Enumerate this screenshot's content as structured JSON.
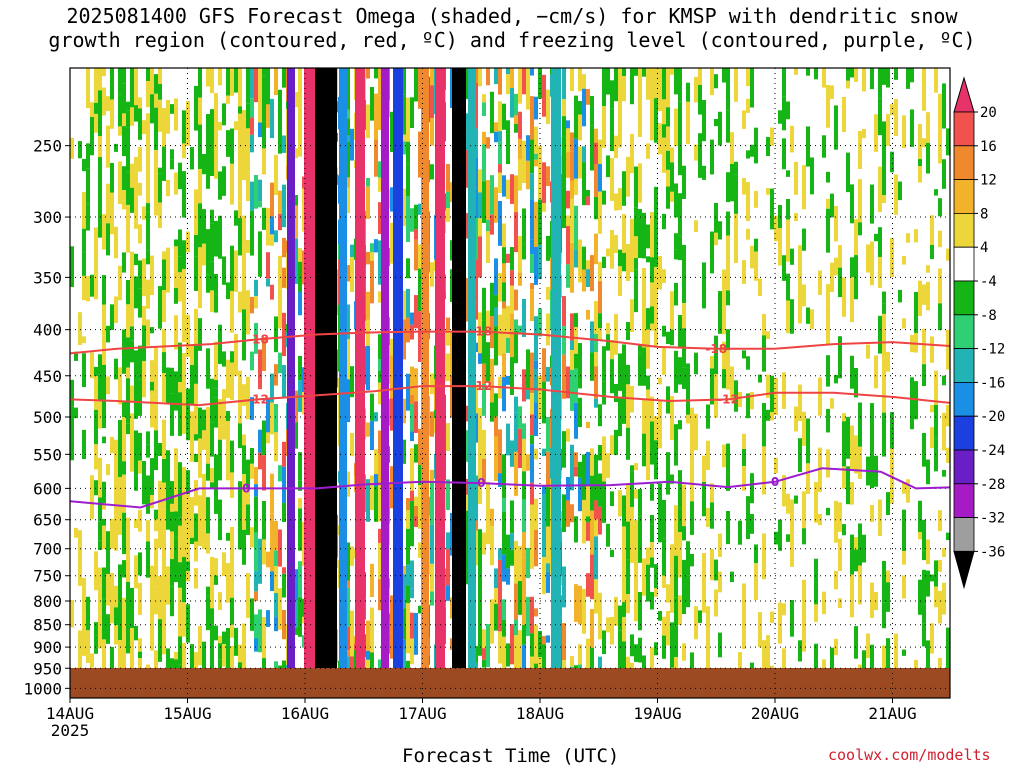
{
  "title_line1": "2025081400 GFS Forecast Omega (shaded, −cm/s) for KMSP with dendritic snow",
  "title_line2": "growth region (contoured, red, ºC) and freezing level (contoured, purple, ºC)",
  "credit": "coolwx.com/modelts",
  "chart_data": {
    "type": "heatmap",
    "title": "2025081400 GFS Forecast Omega (shaded, −cm/s) for KMSP with dendritic snow growth region (contoured, red, ºC) and freezing level (contoured, purple, ºC)",
    "xlabel": "Forecast Time (UTC)",
    "x_ticks": [
      "14AUG",
      "15AUG",
      "16AUG",
      "17AUG",
      "18AUG",
      "19AUG",
      "20AUG",
      "21AUG"
    ],
    "x_first_tick_year": "2025",
    "y_ticks": [
      250,
      300,
      350,
      400,
      450,
      500,
      550,
      600,
      650,
      700,
      750,
      800,
      850,
      900,
      950,
      1000
    ],
    "y_scale": "log-pressure, inverted",
    "grid": true,
    "colorbar": {
      "levels": [
        20,
        16,
        12,
        8,
        4,
        -4,
        -8,
        -12,
        -16,
        -20,
        -24,
        -28,
        -32,
        -36
      ],
      "colors": [
        "#e8336a",
        "#f2524e",
        "#f0892e",
        "#f2b22a",
        "#ecd63a",
        "#ffffff",
        "#15b515",
        "#2fcf73",
        "#22b4b4",
        "#1b8fe6",
        "#1c3fe0",
        "#6a1fc6",
        "#a51bc6",
        "#9e9e9e",
        "#000000"
      ]
    },
    "contours": [
      {
        "name": "dendritic",
        "color": "#ef4444",
        "label": "-18",
        "points": [
          [
            0,
            425
          ],
          [
            0.4,
            420
          ],
          [
            1.2,
            415
          ],
          [
            1.6,
            410
          ],
          [
            2.1,
            405
          ],
          [
            2.5,
            403
          ],
          [
            3,
            402
          ],
          [
            3.5,
            402
          ],
          [
            4,
            405
          ],
          [
            4.6,
            412
          ],
          [
            5,
            418
          ],
          [
            5.5,
            420
          ],
          [
            6,
            420
          ],
          [
            6.5,
            415
          ],
          [
            7,
            413
          ],
          [
            7.6,
            418
          ]
        ]
      },
      {
        "name": "dendritic",
        "color": "#ef4444",
        "label": "-12",
        "points": [
          [
            0,
            478
          ],
          [
            0.4,
            480
          ],
          [
            1.1,
            485
          ],
          [
            1.6,
            478
          ],
          [
            2.2,
            472
          ],
          [
            2.6,
            468
          ],
          [
            3,
            462
          ],
          [
            3.5,
            462
          ],
          [
            4,
            466
          ],
          [
            4.6,
            475
          ],
          [
            5.1,
            480
          ],
          [
            5.6,
            478
          ],
          [
            6,
            470
          ],
          [
            6.5,
            470
          ],
          [
            7,
            475
          ],
          [
            7.6,
            484
          ]
        ]
      },
      {
        "name": "freezing",
        "color": "#9e1cd0",
        "label": "0",
        "points": [
          [
            0,
            620
          ],
          [
            0.6,
            630
          ],
          [
            1.1,
            600
          ],
          [
            1.5,
            600
          ],
          [
            1.8,
            600
          ],
          [
            2.1,
            600
          ],
          [
            2.5,
            594
          ],
          [
            3,
            590
          ],
          [
            3.5,
            592
          ],
          [
            4,
            596
          ],
          [
            4.6,
            595
          ],
          [
            5.1,
            590
          ],
          [
            5.6,
            598
          ],
          [
            6,
            590
          ],
          [
            6.4,
            570
          ],
          [
            6.9,
            575
          ],
          [
            7.2,
            600
          ],
          [
            7.6,
            598
          ]
        ]
      }
    ]
  }
}
